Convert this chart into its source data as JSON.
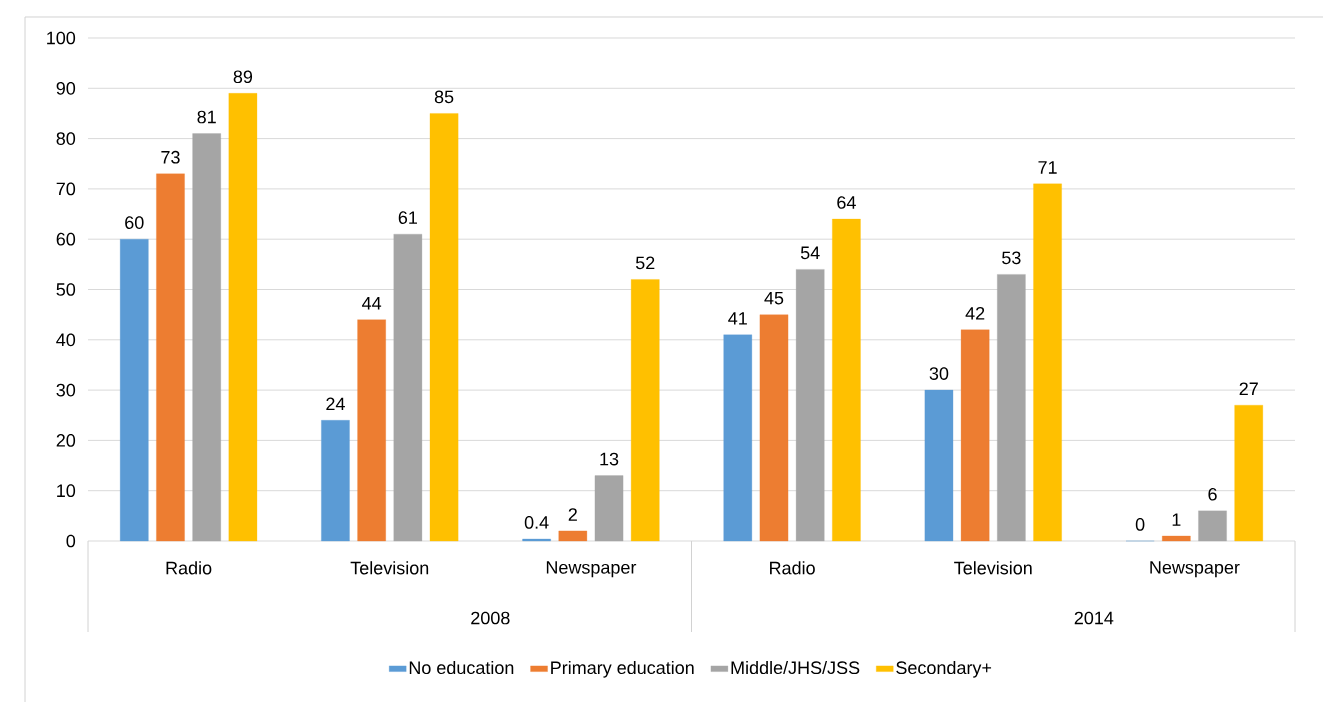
{
  "chart_data": {
    "type": "bar",
    "categories": [
      "Radio",
      "Television",
      "Newspaper",
      "Radio",
      "Television",
      "Newspaper"
    ],
    "annotations": [
      "2008",
      "2014"
    ],
    "series": [
      {
        "name": "No education",
        "color": "#5b9bd5",
        "values": [
          60,
          24,
          0.4,
          41,
          30,
          0
        ]
      },
      {
        "name": "Primary education",
        "color": "#ed7d31",
        "values": [
          73,
          44,
          2,
          45,
          42,
          1
        ]
      },
      {
        "name": "Middle/JHS/JSS",
        "color": "#a5a5a5",
        "values": [
          81,
          61,
          13,
          54,
          53,
          6
        ]
      },
      {
        "name": "Secondary+",
        "color": "#ffc000",
        "values": [
          89,
          85,
          52,
          64,
          71,
          27
        ]
      }
    ],
    "ylim": [
      0,
      100
    ],
    "yticks": [
      0,
      10,
      20,
      30,
      40,
      50,
      60,
      70,
      80,
      90,
      100
    ],
    "grid": "y",
    "legend": "bottom",
    "data_labels": true
  }
}
